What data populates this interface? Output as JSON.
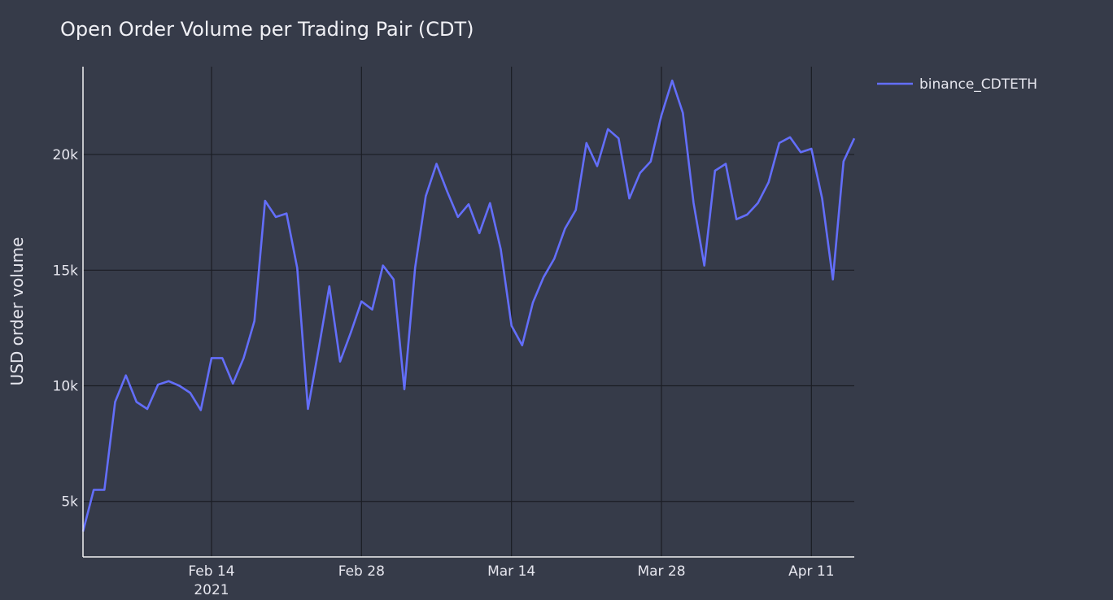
{
  "chart_data": {
    "type": "line",
    "title": "Open Order Volume per Trading Pair (CDT)",
    "xlabel": "",
    "ylabel": "USD order volume",
    "x_start": "2021-02-02",
    "x_end": "2021-04-15",
    "x_ticks": [
      {
        "date": "2021-02-14",
        "label": "Feb 14",
        "sublabel": "2021"
      },
      {
        "date": "2021-02-28",
        "label": "Feb 28",
        "sublabel": ""
      },
      {
        "date": "2021-03-14",
        "label": "Mar 14",
        "sublabel": ""
      },
      {
        "date": "2021-03-28",
        "label": "Mar 28",
        "sublabel": ""
      },
      {
        "date": "2021-04-11",
        "label": "Apr 11",
        "sublabel": ""
      }
    ],
    "ylim": [
      2600,
      23800
    ],
    "y_ticks": [
      {
        "value": 5000,
        "label": "5k"
      },
      {
        "value": 10000,
        "label": "10k"
      },
      {
        "value": 15000,
        "label": "15k"
      },
      {
        "value": 20000,
        "label": "20k"
      }
    ],
    "grid": true,
    "legend_position": "top-right",
    "series": [
      {
        "name": "binance_CDTETH",
        "color": "#636efa",
        "x": [
          "2021-02-02",
          "2021-02-03",
          "2021-02-04",
          "2021-02-05",
          "2021-02-06",
          "2021-02-07",
          "2021-02-08",
          "2021-02-09",
          "2021-02-10",
          "2021-02-11",
          "2021-02-12",
          "2021-02-13",
          "2021-02-14",
          "2021-02-15",
          "2021-02-16",
          "2021-02-17",
          "2021-02-18",
          "2021-02-19",
          "2021-02-20",
          "2021-02-21",
          "2021-02-22",
          "2021-02-23",
          "2021-02-24",
          "2021-02-25",
          "2021-02-26",
          "2021-02-27",
          "2021-02-28",
          "2021-03-01",
          "2021-03-02",
          "2021-03-03",
          "2021-03-04",
          "2021-03-05",
          "2021-03-06",
          "2021-03-07",
          "2021-03-08",
          "2021-03-09",
          "2021-03-10",
          "2021-03-11",
          "2021-03-12",
          "2021-03-13",
          "2021-03-14",
          "2021-03-15",
          "2021-03-16",
          "2021-03-17",
          "2021-03-18",
          "2021-03-19",
          "2021-03-20",
          "2021-03-21",
          "2021-03-22",
          "2021-03-23",
          "2021-03-24",
          "2021-03-25",
          "2021-03-26",
          "2021-03-27",
          "2021-03-28",
          "2021-03-29",
          "2021-03-30",
          "2021-03-31",
          "2021-04-01",
          "2021-04-02",
          "2021-04-03",
          "2021-04-04",
          "2021-04-05",
          "2021-04-06",
          "2021-04-07",
          "2021-04-08",
          "2021-04-09",
          "2021-04-10",
          "2021-04-11",
          "2021-04-12",
          "2021-04-13",
          "2021-04-14",
          "2021-04-15"
        ],
        "y": [
          3700,
          5500,
          5500,
          9300,
          10450,
          9300,
          9000,
          10050,
          10200,
          10000,
          9700,
          8950,
          11200,
          11200,
          10100,
          11200,
          12800,
          18000,
          17300,
          17450,
          15100,
          9000,
          11600,
          14300,
          11050,
          12300,
          13650,
          13300,
          15200,
          14600,
          9850,
          15100,
          18200,
          19600,
          18400,
          17300,
          17850,
          16600,
          17900,
          15900,
          12600,
          11750,
          13600,
          14700,
          15500,
          16800,
          17600,
          20500,
          19500,
          21100,
          20700,
          18100,
          19200,
          19700,
          21700,
          23200,
          21800,
          17900,
          15200,
          19300,
          19600,
          17200,
          17400,
          17900,
          18800,
          20500,
          20750,
          20100,
          20250,
          18100,
          14600,
          19700,
          20700
        ]
      }
    ]
  }
}
